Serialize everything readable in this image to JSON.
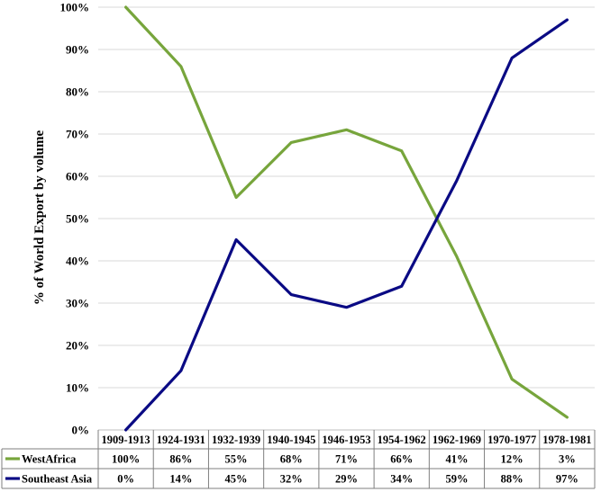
{
  "chart_data": {
    "type": "line",
    "title": "",
    "xlabel": "",
    "ylabel": "% of World Export by volume",
    "ylim": [
      0,
      100
    ],
    "y_ticks": [
      "0%",
      "10%",
      "20%",
      "30%",
      "40%",
      "50%",
      "60%",
      "70%",
      "80%",
      "90%",
      "100%"
    ],
    "categories": [
      "1909-1913",
      "1924-1931",
      "1932-1939",
      "1940-1945",
      "1946-1953",
      "1954-1962",
      "1962-1969",
      "1970-1977",
      "1978-1981"
    ],
    "series": [
      {
        "name": "WestAfrica",
        "color": "#77a53c",
        "values": [
          100,
          86,
          55,
          68,
          71,
          66,
          41,
          12,
          3
        ],
        "labels": [
          "100%",
          "86%",
          "55%",
          "68%",
          "71%",
          "66%",
          "41%",
          "12%",
          "3%"
        ]
      },
      {
        "name": "Southeast Asia",
        "color": "#0a0a84",
        "values": [
          0,
          14,
          45,
          32,
          29,
          34,
          59,
          88,
          97
        ],
        "labels": [
          "0%",
          "14%",
          "45%",
          "32%",
          "29%",
          "34%",
          "59%",
          "88%",
          "97%"
        ]
      }
    ],
    "grid": "horizontal",
    "legend": "data-table"
  }
}
